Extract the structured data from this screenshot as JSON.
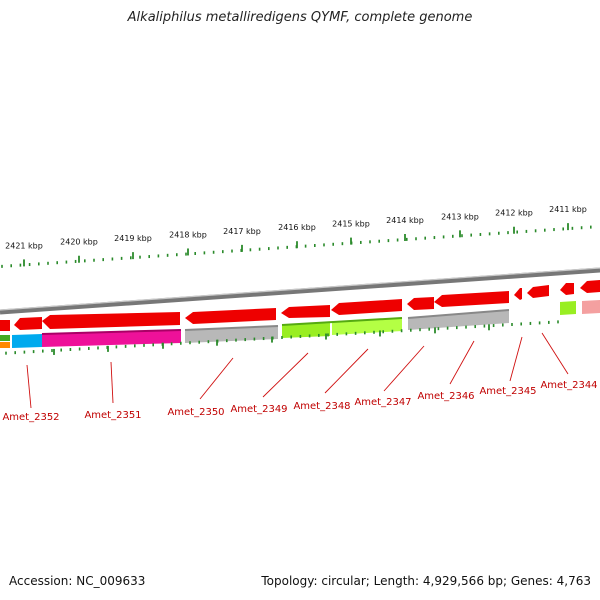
{
  "title": "Alkaliphilus metalliredigens QYMF, complete genome",
  "footer": {
    "accession": "Accession: NC_009633",
    "summary": "Topology: circular; Length: 4,929,566 bp; Genes: 4,763"
  },
  "ruler": [
    {
      "label": "2421 kbp"
    },
    {
      "label": "2420 kbp"
    },
    {
      "label": "2419 kbp"
    },
    {
      "label": "2418 kbp"
    },
    {
      "label": "2417 kbp"
    },
    {
      "label": "2416 kbp"
    },
    {
      "label": "2415 kbp"
    },
    {
      "label": "2414 kbp"
    },
    {
      "label": "2413 kbp"
    },
    {
      "label": "2412 kbp"
    },
    {
      "label": "2411 kbp"
    }
  ],
  "genes": [
    {
      "label": "Amet_2352",
      "color": "#00aaee"
    },
    {
      "label": "Amet_2351",
      "color": "#ee1199"
    },
    {
      "label": "Amet_2350",
      "color": "#b8b8b8"
    },
    {
      "label": "Amet_2349",
      "color": "#99ee22"
    },
    {
      "label": "Amet_2348",
      "color": "#b4ff44"
    },
    {
      "label": "Amet_2347",
      "color": "#b8b8b8"
    },
    {
      "label": "Amet_2346",
      "color": "#b8b8b8"
    },
    {
      "label": "Amet_2345",
      "color": "#ffffff"
    },
    {
      "label": "Amet_2344",
      "color": "#99ee22"
    }
  ],
  "colors": {
    "forward_strand": "#ee0000",
    "backbone": "#888888",
    "ticks": "#2a8a2a",
    "gene_label": "#c00000"
  }
}
